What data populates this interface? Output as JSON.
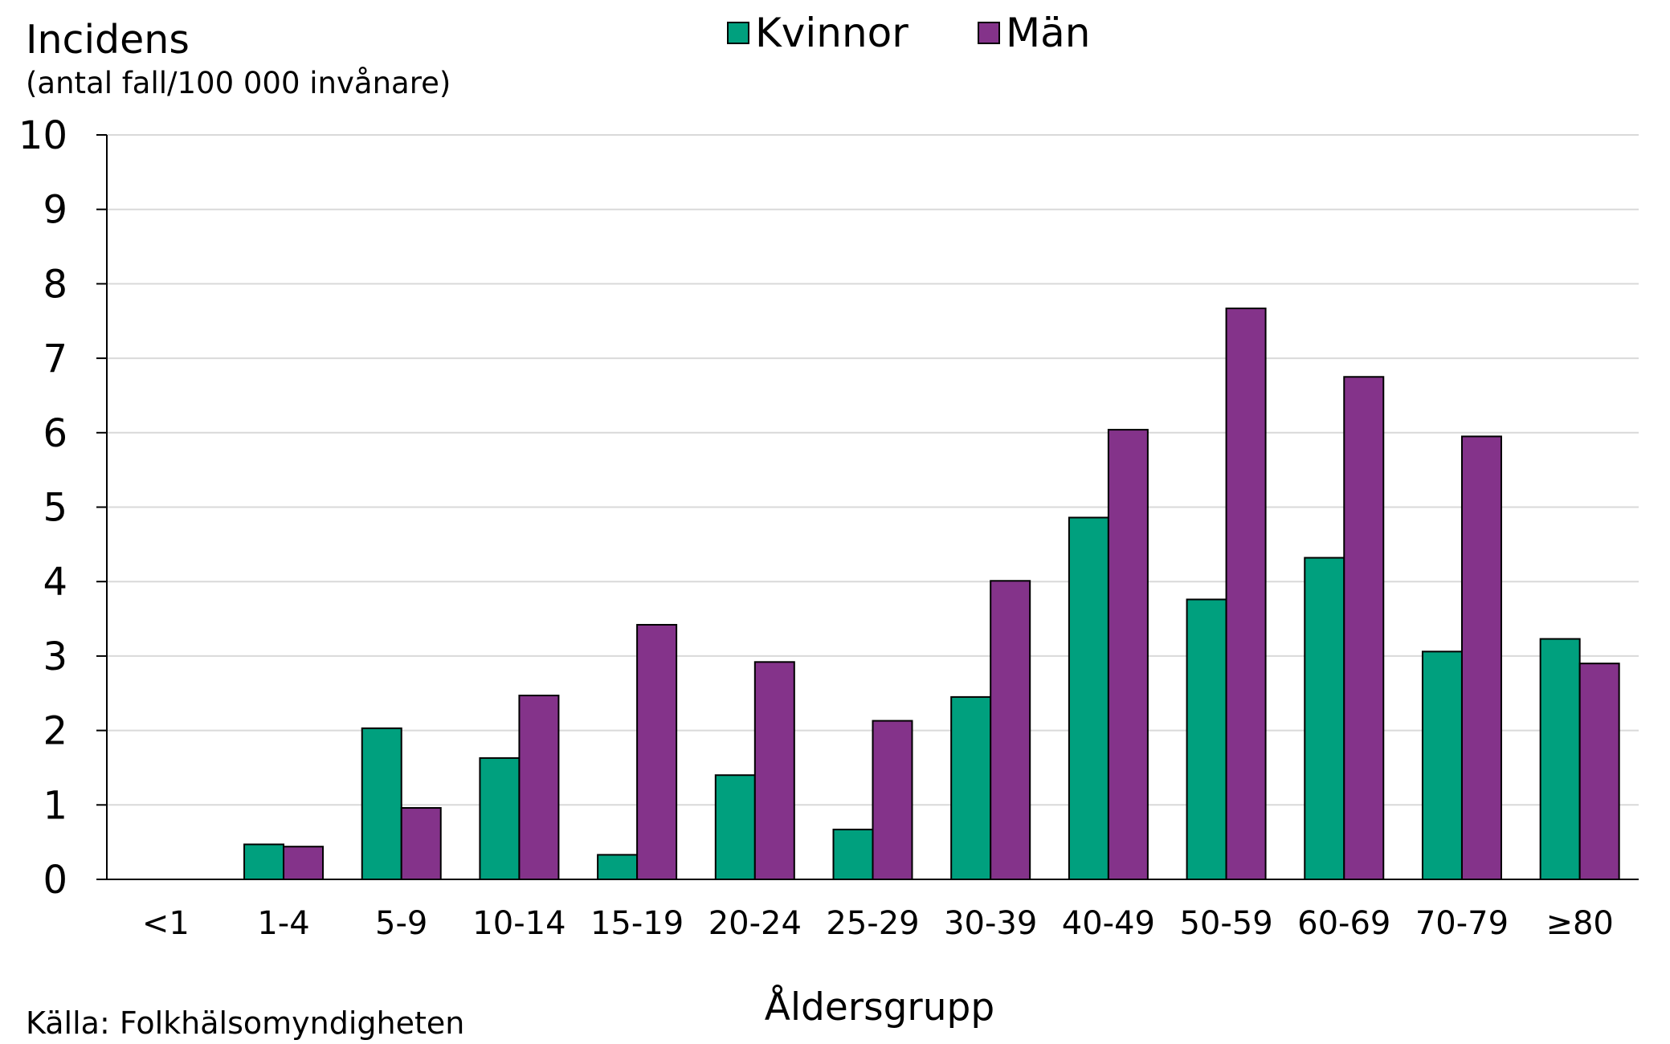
{
  "chart_data": {
    "type": "bar",
    "ylabel": "Incidens",
    "ylabel_sub": "(antal fall/100 000 invånare)",
    "xlabel": "Åldersgrupp",
    "source": "Källa: Folkhälsomyndigheten",
    "ylim": [
      0,
      10
    ],
    "yticks": [
      "0",
      "1",
      "2",
      "3",
      "4",
      "5",
      "6",
      "7",
      "8",
      "9",
      "10"
    ],
    "grid": true,
    "legend_position": "top-center",
    "categories": [
      "<1",
      "1-4",
      "5-9",
      "10-14",
      "15-19",
      "20-24",
      "25-29",
      "30-39",
      "40-49",
      "50-59",
      "60-69",
      "70-79",
      "≥80"
    ],
    "series": [
      {
        "name": "Kvinnor",
        "color": "#00A07E",
        "values": [
          0,
          0.47,
          2.03,
          1.63,
          0.33,
          1.4,
          0.67,
          2.45,
          4.86,
          3.76,
          4.32,
          3.06,
          3.23
        ]
      },
      {
        "name": "Män",
        "color": "#84338A",
        "values": [
          0,
          0.44,
          0.96,
          2.47,
          3.42,
          2.92,
          2.13,
          4.01,
          6.04,
          7.67,
          6.75,
          5.95,
          2.9
        ]
      }
    ]
  }
}
